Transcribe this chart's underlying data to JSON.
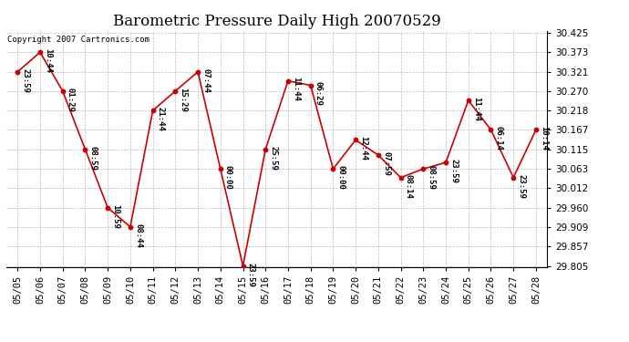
{
  "title": "Barometric Pressure Daily High 20070529",
  "copyright": "Copyright 2007 Cartronics.com",
  "dates": [
    "05/05",
    "05/06",
    "05/07",
    "05/08",
    "05/09",
    "05/10",
    "05/11",
    "05/12",
    "05/13",
    "05/14",
    "05/15",
    "05/16",
    "05/17",
    "05/18",
    "05/19",
    "05/20",
    "05/21",
    "05/22",
    "05/23",
    "05/24",
    "05/25",
    "05/26",
    "05/27",
    "05/28"
  ],
  "values": [
    30.321,
    30.373,
    30.27,
    30.115,
    29.96,
    29.909,
    30.218,
    30.27,
    30.321,
    30.063,
    29.805,
    30.115,
    30.297,
    30.285,
    30.063,
    30.14,
    30.1,
    30.04,
    30.063,
    30.08,
    30.245,
    30.167,
    30.04,
    30.167
  ],
  "labels": [
    "23:59",
    "10:44",
    "01:29",
    "08:59",
    "10:59",
    "08:44",
    "21:44",
    "15:29",
    "07:44",
    "00:00",
    "23:59",
    "25:59",
    "11:44",
    "06:29",
    "00:00",
    "12:44",
    "07:59",
    "08:14",
    "08:59",
    "23:59",
    "11:44",
    "06:14",
    "23:59",
    "10:14"
  ],
  "ylim_min": 29.805,
  "ylim_max": 30.425,
  "yticks": [
    29.805,
    29.857,
    29.909,
    29.96,
    30.012,
    30.063,
    30.115,
    30.167,
    30.218,
    30.27,
    30.321,
    30.373,
    30.425
  ],
  "line_color": "#cc0000",
  "marker_color": "#cc0000",
  "bg_color": "#ffffff",
  "grid_color": "#bbbbbb",
  "title_fontsize": 12,
  "label_fontsize": 6.5,
  "tick_fontsize": 7.5,
  "copyright_fontsize": 6.5
}
